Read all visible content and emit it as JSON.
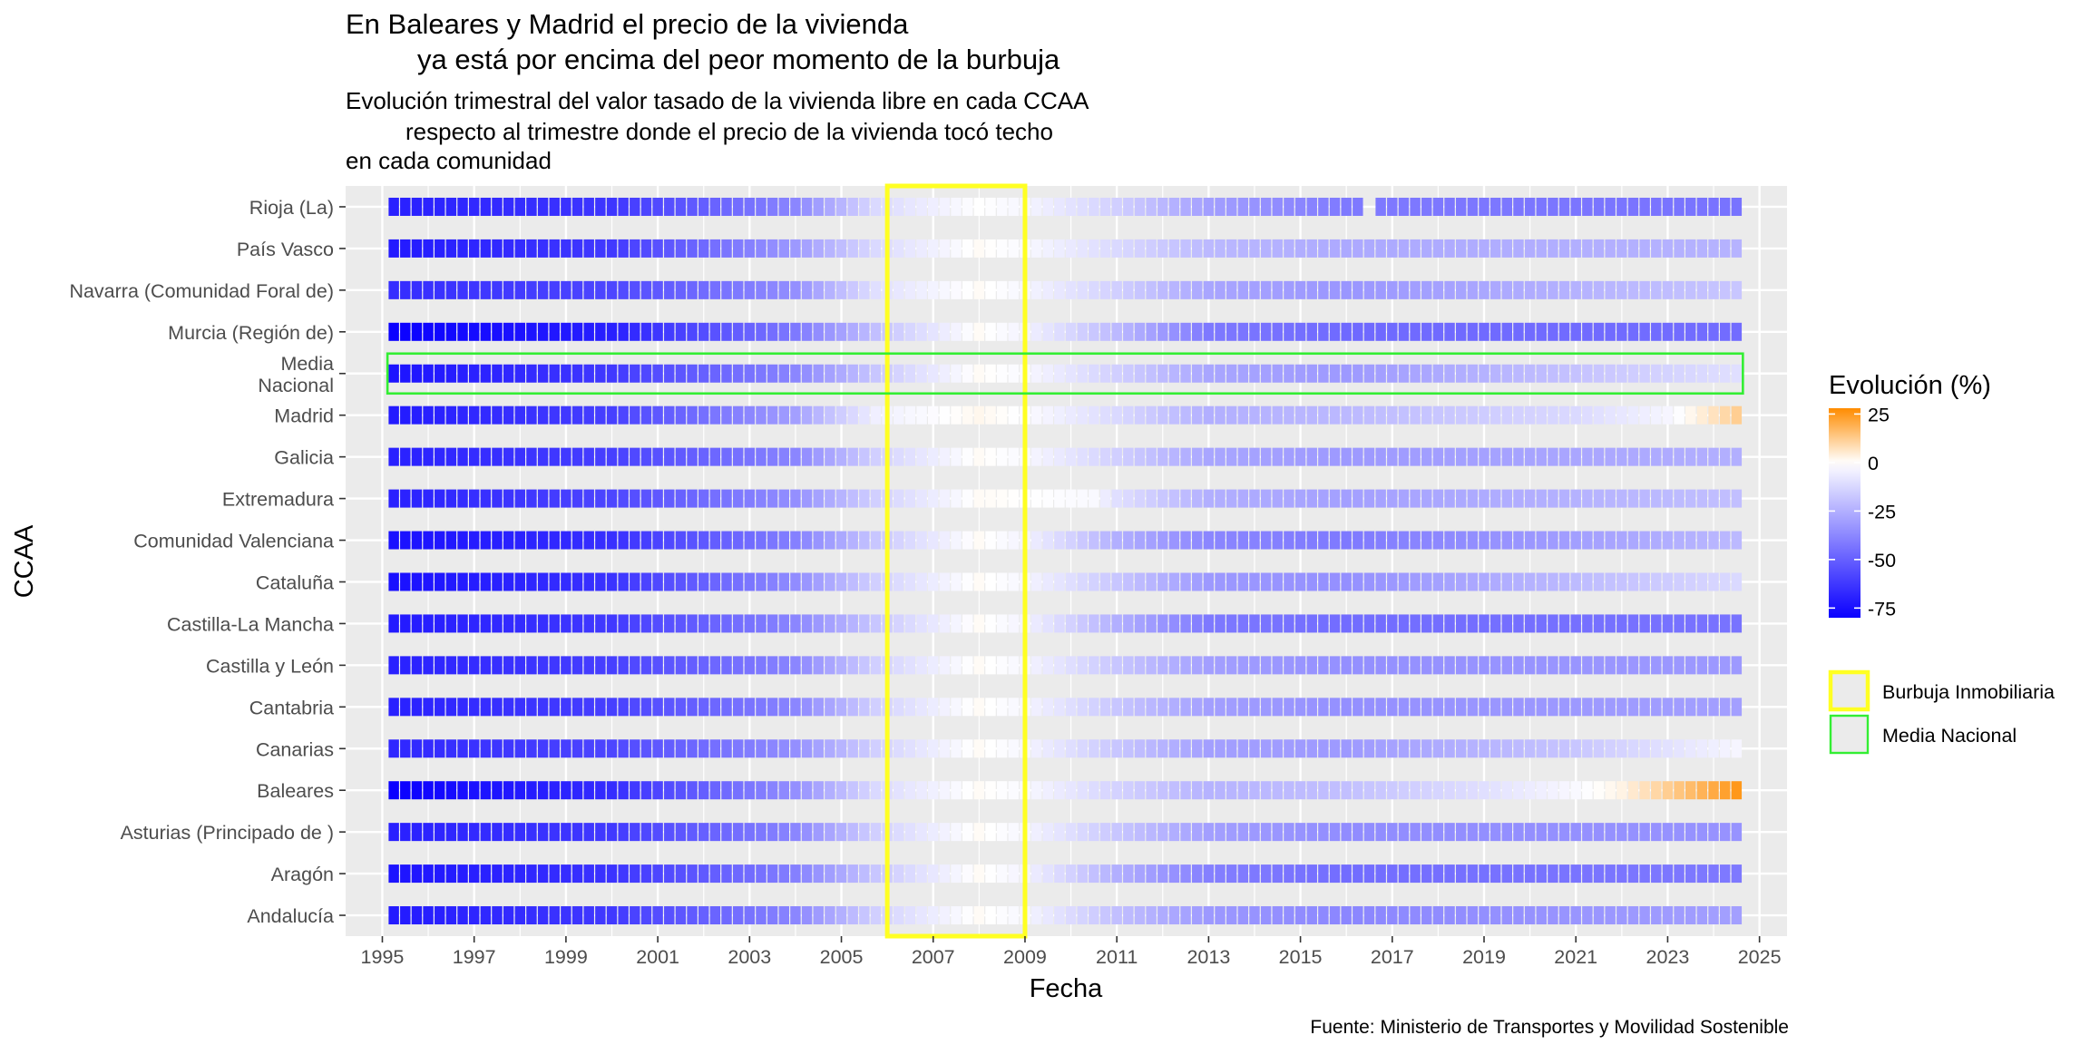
{
  "chart_data": {
    "type": "heatmap",
    "title": [
      "En Baleares y Madrid el precio de la vivienda",
      "ya está por encima del peor momento de la burbuja"
    ],
    "subtitle": [
      "Evolución trimestral del valor tasado de la vivienda libre en cada CCAA",
      "respecto al trimestre donde el precio de la vivienda tocó techo",
      "en cada comunidad"
    ],
    "xlabel": "Fecha",
    "ylabel": "CCAA",
    "caption": "Fuente: Ministerio de Transportes y Movilidad Sostenible",
    "x_range": [
      1994.2,
      2025.6
    ],
    "x_ticks": [
      "1995",
      "1997",
      "1999",
      "2001",
      "2003",
      "2005",
      "2007",
      "2009",
      "2011",
      "2013",
      "2015",
      "2017",
      "2019",
      "2021",
      "2023",
      "2025"
    ],
    "quarters": {
      "start": 1995.25,
      "end": 2024.5,
      "step": 0.25
    },
    "categories": [
      {
        "label": [
          "Rioja (La)"
        ],
        "gaps": [
          2016.5
        ]
      },
      {
        "label": [
          "País Vasco"
        ]
      },
      {
        "label": [
          "Navarra (Comunidad Foral de)"
        ]
      },
      {
        "label": [
          "Murcia (Región de)"
        ]
      },
      {
        "label": [
          "Media",
          "Nacional"
        ]
      },
      {
        "label": [
          "Madrid"
        ]
      },
      {
        "label": [
          "Galicia"
        ]
      },
      {
        "label": [
          "Extremadura"
        ]
      },
      {
        "label": [
          "Comunidad Valenciana"
        ]
      },
      {
        "label": [
          "Cataluña"
        ]
      },
      {
        "label": [
          "Castilla-La Mancha"
        ]
      },
      {
        "label": [
          "Castilla y León"
        ]
      },
      {
        "label": [
          "Cantabria"
        ]
      },
      {
        "label": [
          "Canarias"
        ]
      },
      {
        "label": [
          "Baleares"
        ]
      },
      {
        "label": [
          "Asturias (Principado de )"
        ]
      },
      {
        "label": [
          "Aragón"
        ]
      },
      {
        "label": [
          "Andalucía"
        ]
      }
    ],
    "series_profiles": {
      "Rioja (La)": [
        [
          1995.25,
          -70
        ],
        [
          2000,
          -63
        ],
        [
          2004,
          -38
        ],
        [
          2005.75,
          -12
        ],
        [
          2008,
          0
        ],
        [
          2009,
          -3
        ],
        [
          2011,
          -15
        ],
        [
          2013,
          -30
        ],
        [
          2016,
          -42
        ],
        [
          2024.5,
          -44
        ]
      ],
      "País Vasco": [
        [
          1995.25,
          -72
        ],
        [
          2000,
          -62
        ],
        [
          2004,
          -32
        ],
        [
          2005.75,
          -12
        ],
        [
          2008,
          1
        ],
        [
          2009,
          -2
        ],
        [
          2011,
          -12
        ],
        [
          2013,
          -22
        ],
        [
          2016,
          -27
        ],
        [
          2024.5,
          -24
        ]
      ],
      "Navarra (Comunidad Foral de)": [
        [
          1995.25,
          -66
        ],
        [
          2000,
          -58
        ],
        [
          2004,
          -35
        ],
        [
          2005.75,
          -10
        ],
        [
          2008,
          1
        ],
        [
          2009,
          -3
        ],
        [
          2011,
          -15
        ],
        [
          2013,
          -28
        ],
        [
          2016,
          -33
        ],
        [
          2024.5,
          -18
        ]
      ],
      "Murcia (Región de)": [
        [
          1995.25,
          -80
        ],
        [
          2000,
          -70
        ],
        [
          2004,
          -42
        ],
        [
          2005.75,
          -20
        ],
        [
          2008,
          1
        ],
        [
          2009,
          -4
        ],
        [
          2011,
          -22
        ],
        [
          2013,
          -42
        ],
        [
          2016,
          -47
        ],
        [
          2024.5,
          -46
        ]
      ],
      "Media": [
        [
          1995.25,
          -74
        ],
        [
          2000,
          -62
        ],
        [
          2004,
          -38
        ],
        [
          2005.75,
          -18
        ],
        [
          2008,
          1
        ],
        [
          2009,
          -2
        ],
        [
          2011,
          -15
        ],
        [
          2013,
          -28
        ],
        [
          2016,
          -32
        ],
        [
          2024.5,
          -10
        ]
      ],
      "Madrid": [
        [
          1995.25,
          -72
        ],
        [
          2000,
          -60
        ],
        [
          2004,
          -30
        ],
        [
          2005.75,
          -5
        ],
        [
          2008,
          2
        ],
        [
          2009,
          -1
        ],
        [
          2011,
          -12
        ],
        [
          2013,
          -25
        ],
        [
          2016,
          -22
        ],
        [
          2021,
          -12
        ],
        [
          2023,
          -3
        ],
        [
          2024.5,
          12
        ]
      ],
      "Galicia": [
        [
          1995.25,
          -70
        ],
        [
          2000,
          -60
        ],
        [
          2004,
          -38
        ],
        [
          2005.75,
          -15
        ],
        [
          2008,
          1
        ],
        [
          2009,
          -2
        ],
        [
          2011,
          -15
        ],
        [
          2013,
          -28
        ],
        [
          2016,
          -32
        ],
        [
          2024.5,
          -25
        ]
      ],
      "Extremadura": [
        [
          1995.25,
          -70
        ],
        [
          2000,
          -58
        ],
        [
          2004,
          -35
        ],
        [
          2005.75,
          -15
        ],
        [
          2008,
          1
        ],
        [
          2009,
          0
        ],
        [
          2010.5,
          -2
        ],
        [
          2011,
          -10
        ],
        [
          2013,
          -25
        ],
        [
          2016,
          -30
        ],
        [
          2024.5,
          -20
        ]
      ],
      "Comunidad Valenciana": [
        [
          1995.25,
          -75
        ],
        [
          2000,
          -65
        ],
        [
          2004,
          -40
        ],
        [
          2005.75,
          -18
        ],
        [
          2008,
          1
        ],
        [
          2009,
          -4
        ],
        [
          2011,
          -25
        ],
        [
          2013,
          -38
        ],
        [
          2016,
          -42
        ],
        [
          2024.5,
          -22
        ]
      ],
      "Cataluña": [
        [
          1995.25,
          -75
        ],
        [
          2000,
          -64
        ],
        [
          2004,
          -36
        ],
        [
          2005.75,
          -15
        ],
        [
          2008,
          1
        ],
        [
          2009,
          -3
        ],
        [
          2011,
          -18
        ],
        [
          2013,
          -32
        ],
        [
          2016,
          -35
        ],
        [
          2024.5,
          -12
        ]
      ],
      "Castilla-La Mancha": [
        [
          1995.25,
          -72
        ],
        [
          2000,
          -62
        ],
        [
          2004,
          -38
        ],
        [
          2005.75,
          -18
        ],
        [
          2008,
          1
        ],
        [
          2009,
          -4
        ],
        [
          2011,
          -25
        ],
        [
          2013,
          -42
        ],
        [
          2016,
          -46
        ],
        [
          2024.5,
          -44
        ]
      ],
      "Castilla y León": [
        [
          1995.25,
          -70
        ],
        [
          2000,
          -60
        ],
        [
          2004,
          -38
        ],
        [
          2005.75,
          -15
        ],
        [
          2008,
          1
        ],
        [
          2009,
          -3
        ],
        [
          2011,
          -18
        ],
        [
          2013,
          -30
        ],
        [
          2016,
          -35
        ],
        [
          2024.5,
          -32
        ]
      ],
      "Cantabria": [
        [
          1995.25,
          -70
        ],
        [
          2000,
          -60
        ],
        [
          2004,
          -38
        ],
        [
          2005.75,
          -15
        ],
        [
          2008,
          1
        ],
        [
          2009,
          -3
        ],
        [
          2011,
          -18
        ],
        [
          2013,
          -30
        ],
        [
          2016,
          -35
        ],
        [
          2024.5,
          -30
        ]
      ],
      "Canarias": [
        [
          1995.25,
          -68
        ],
        [
          2000,
          -58
        ],
        [
          2004,
          -35
        ],
        [
          2005.75,
          -15
        ],
        [
          2008,
          1
        ],
        [
          2009,
          -3
        ],
        [
          2011,
          -18
        ],
        [
          2013,
          -30
        ],
        [
          2016,
          -32
        ],
        [
          2021,
          -18
        ],
        [
          2024.5,
          -3
        ]
      ],
      "Baleares": [
        [
          1995.25,
          -80
        ],
        [
          2000,
          -66
        ],
        [
          2004,
          -35
        ],
        [
          2005.75,
          -12
        ],
        [
          2008,
          1
        ],
        [
          2009,
          -2
        ],
        [
          2011,
          -14
        ],
        [
          2013,
          -24
        ],
        [
          2016,
          -20
        ],
        [
          2019,
          -10
        ],
        [
          2021,
          -2
        ],
        [
          2022,
          3
        ],
        [
          2023,
          12
        ],
        [
          2024.5,
          25
        ]
      ],
      "Asturias (Principado de )": [
        [
          1995.25,
          -70
        ],
        [
          2000,
          -62
        ],
        [
          2004,
          -38
        ],
        [
          2005.75,
          -15
        ],
        [
          2008,
          1
        ],
        [
          2009,
          -3
        ],
        [
          2011,
          -18
        ],
        [
          2013,
          -30
        ],
        [
          2016,
          -36
        ],
        [
          2024.5,
          -34
        ]
      ],
      "Aragón": [
        [
          1995.25,
          -74
        ],
        [
          2000,
          -64
        ],
        [
          2004,
          -40
        ],
        [
          2005.75,
          -18
        ],
        [
          2008,
          1
        ],
        [
          2009,
          -4
        ],
        [
          2011,
          -25
        ],
        [
          2013,
          -40
        ],
        [
          2016,
          -46
        ],
        [
          2024.5,
          -42
        ]
      ],
      "Andalucía": [
        [
          1995.25,
          -72
        ],
        [
          2000,
          -62
        ],
        [
          2004,
          -38
        ],
        [
          2005.75,
          -15
        ],
        [
          2008,
          1
        ],
        [
          2009,
          -3
        ],
        [
          2011,
          -20
        ],
        [
          2013,
          -32
        ],
        [
          2016,
          -38
        ],
        [
          2024.5,
          -30
        ]
      ]
    },
    "highlight_bubble": {
      "x_from": 2006.0,
      "x_to": 2009.0,
      "color": "#ffff22"
    },
    "highlight_media": {
      "category": "Media",
      "color": "#33ee33"
    },
    "legend": {
      "title": "Evolución (%)",
      "placement": "right",
      "scale_min": -80,
      "scale_max": 28,
      "ticks": [
        "25",
        "0",
        "-25",
        "-50",
        "-75"
      ],
      "tick_values": [
        25,
        0,
        -25,
        -50,
        -75
      ],
      "boxes": [
        {
          "label": "Burbuja Inmobiliaria",
          "color": "#ffff22"
        },
        {
          "label": "Media Nacional",
          "color": "#33ee33"
        }
      ]
    },
    "colors": {
      "low": "#0a00ff",
      "mid": "#ffffff",
      "high": "#ff8c00",
      "panel": "#ebebeb",
      "grid": "#ffffff"
    }
  }
}
